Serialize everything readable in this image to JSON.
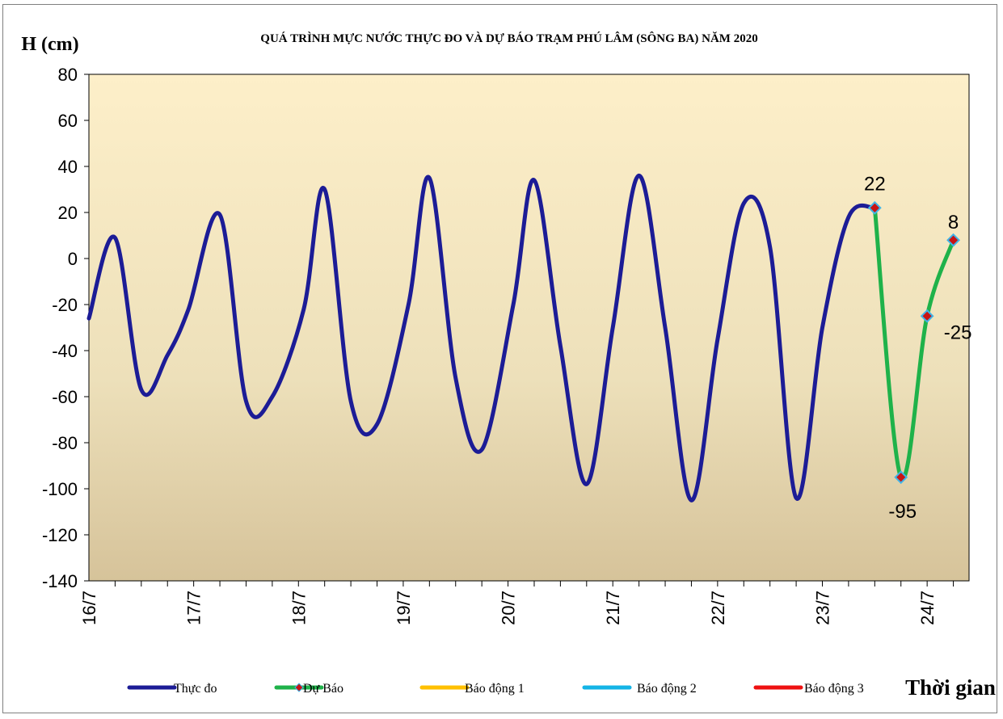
{
  "chart_data": {
    "type": "line",
    "title": "QUÁ TRÌNH MỰC NƯỚC THỰC ĐO VÀ DỰ BÁO TRẠM  PHÚ LÂM (SÔNG BA) NĂM 2020",
    "ylabel": "H (cm)",
    "xlabel": "Thời gian",
    "ylim": [
      -140,
      80
    ],
    "yticks": [
      "80",
      "60",
      "40",
      "20",
      "0",
      "-20",
      "-40",
      "-60",
      "-80",
      "-100",
      "-120",
      "-140"
    ],
    "x_range_days": [
      0,
      8.4
    ],
    "xticks": [
      {
        "label": "16/7",
        "day": 0
      },
      {
        "label": "17/7",
        "day": 1
      },
      {
        "label": "18/7",
        "day": 2
      },
      {
        "label": "19/7",
        "day": 3
      },
      {
        "label": "20/7",
        "day": 4
      },
      {
        "label": "21/7",
        "day": 5
      },
      {
        "label": "22/7",
        "day": 6
      },
      {
        "label": "23/7",
        "day": 7
      },
      {
        "label": "24/7",
        "day": 8
      }
    ],
    "grid": false,
    "legend_position": "bottom",
    "series": [
      {
        "name": "Thực đo",
        "color": "#1c1c96",
        "x": [
          0,
          0.25,
          0.5,
          0.75,
          0.95,
          1.25,
          1.5,
          1.75,
          2.05,
          2.25,
          2.5,
          2.75,
          3.05,
          3.25,
          3.5,
          3.75,
          4.05,
          4.25,
          4.5,
          4.75,
          5.0,
          5.25,
          5.5,
          5.75,
          6.0,
          6.25,
          6.5,
          6.75,
          7.0,
          7.25,
          7.5
        ],
        "y": [
          -26,
          9,
          -57,
          -42,
          -22,
          19,
          -62,
          -60,
          -22,
          30,
          -62,
          -72,
          -20,
          35,
          -52,
          -83,
          -20,
          34,
          -38,
          -98,
          -30,
          36,
          -30,
          -105,
          -35,
          24,
          5,
          -104,
          -30,
          18,
          22
        ]
      },
      {
        "name": "Dự Báo",
        "color": "#1fb24a",
        "x": [
          7.5,
          7.75,
          8.0,
          8.25
        ],
        "y": [
          22,
          -95,
          -25,
          8
        ],
        "labels": [
          "22",
          "-95",
          "-25",
          "8"
        ]
      },
      {
        "name": "Báo động 1",
        "color": "#ffc000",
        "x": [],
        "y": []
      },
      {
        "name": "Báo động 2",
        "color": "#14b4e6",
        "x": [],
        "y": []
      },
      {
        "name": "Báo động 3",
        "color": "#ee1111",
        "x": [],
        "y": []
      }
    ]
  }
}
